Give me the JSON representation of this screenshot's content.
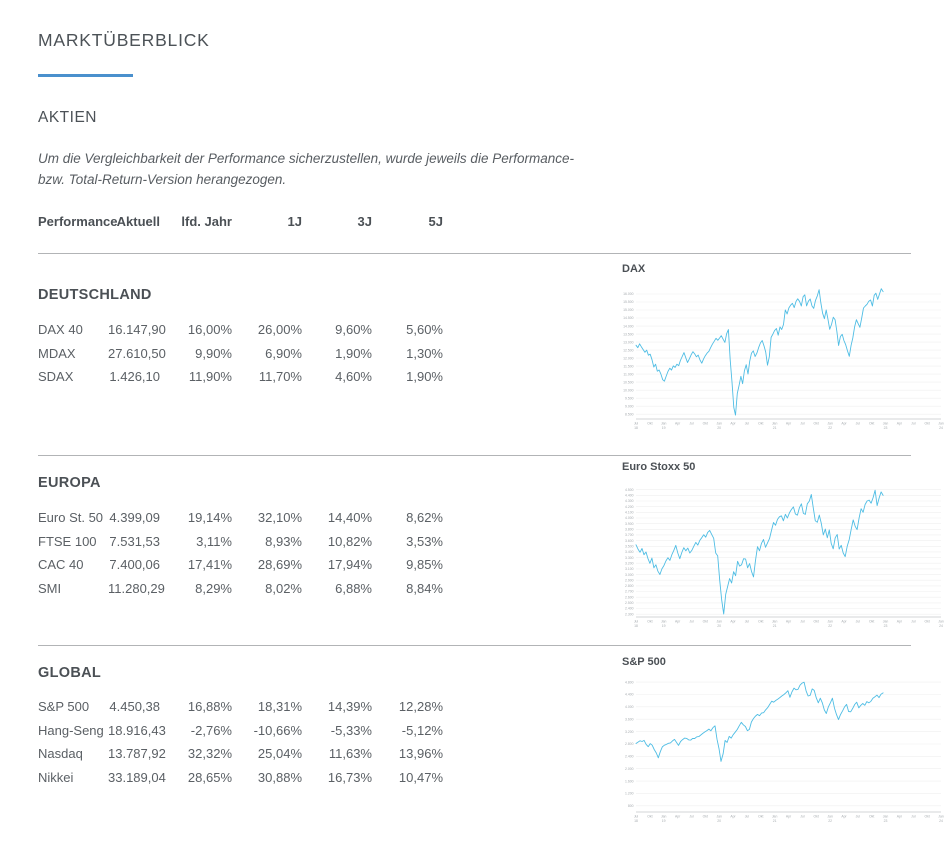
{
  "page": {
    "title": "MARKTÜBERBLICK",
    "accent_color": "#4a90cd"
  },
  "aktien": {
    "heading": "AKTIEN",
    "note_line1": "Um die Vergleichbarkeit der Performance sicherzustellen, wurde jeweils die Performance-",
    "note_line2": "bzw. Total-Return-Version herangezogen."
  },
  "table": {
    "headers": {
      "performance": "Performance",
      "aktuell": "Aktuell",
      "lfd": "lfd. Jahr",
      "j1": "1J",
      "j3": "3J",
      "j5": "5J"
    },
    "groups": [
      {
        "name": "DEUTSCHLAND",
        "rows": [
          {
            "label": "DAX 40",
            "aktuell": "16.147,90",
            "lfd": "16,00%",
            "j1": "26,00%",
            "j3": "9,60%",
            "j5": "5,60%"
          },
          {
            "label": "MDAX",
            "aktuell": "27.610,50",
            "lfd": "9,90%",
            "j1": "6,90%",
            "j3": "1,90%",
            "j5": "1,30%"
          },
          {
            "label": "SDAX",
            "aktuell": "1.426,10",
            "lfd": "11,90%",
            "j1": "11,70%",
            "j3": "4,60%",
            "j5": "1,90%"
          }
        ]
      },
      {
        "name": "EUROPA",
        "rows": [
          {
            "label": "Euro St. 50",
            "aktuell": "4.399,09",
            "lfd": "19,14%",
            "j1": "32,10%",
            "j3": "14,40%",
            "j5": "8,62%"
          },
          {
            "label": "FTSE 100",
            "aktuell": "7.531,53",
            "lfd": "3,11%",
            "j1": "8,93%",
            "j3": "10,82%",
            "j5": "3,53%"
          },
          {
            "label": "CAC 40",
            "aktuell": "7.400,06",
            "lfd": "17,41%",
            "j1": "28,69%",
            "j3": "17,94%",
            "j5": "9,85%"
          },
          {
            "label": "SMI",
            "aktuell": "11.280,29",
            "lfd": "8,29%",
            "j1": "8,02%",
            "j3": "6,88%",
            "j5": "8,84%"
          }
        ]
      },
      {
        "name": "GLOBAL",
        "rows": [
          {
            "label": "S&P 500",
            "aktuell": "4.450,38",
            "lfd": "16,88%",
            "j1": "18,31%",
            "j3": "14,39%",
            "j5": "12,28%"
          },
          {
            "label": "Hang-Seng",
            "aktuell": "18.916,43",
            "lfd": "-2,76%",
            "j1": "-10,66%",
            "j3": "-5,33%",
            "j5": "-5,12%"
          },
          {
            "label": "Nasdaq",
            "aktuell": "13.787,92",
            "lfd": "32,32%",
            "j1": "25,04%",
            "j3": "11,63%",
            "j5": "13,96%"
          },
          {
            "label": "Nikkei",
            "aktuell": "33.189,04",
            "lfd": "28,65%",
            "j1": "30,88%",
            "j3": "16,73%",
            "j5": "10,47%"
          }
        ]
      }
    ]
  },
  "chart_data": [
    {
      "type": "line",
      "title": "DAX",
      "line_color": "#4fbde4",
      "grid": true,
      "legend": "none",
      "ylim": [
        8200,
        16500
      ],
      "line_extent": 0.81,
      "ytick_values": [
        16000,
        15500,
        15000,
        14500,
        14000,
        13500,
        13000,
        12500,
        12000,
        11500,
        11000,
        10500,
        10000,
        9500,
        9000,
        8500
      ],
      "ytick_labels": [
        "16.000",
        "15.500",
        "15.000",
        "14.500",
        "14.000",
        "13.500",
        "13.000",
        "12.500",
        "12.000",
        "11.500",
        "11.000",
        "10.500",
        "10.000",
        "9.500",
        "9.000",
        "8.500"
      ],
      "xtick_labels": [
        "Jul 18",
        "Okt",
        "Jan 19",
        "Apr",
        "Jul",
        "Okt",
        "Jan 20",
        "Apr",
        "Jul",
        "Okt",
        "Jan 21",
        "Apr",
        "Jul",
        "Okt",
        "Jan 22",
        "Apr",
        "Jul",
        "Okt",
        "Jan 23",
        "Apr",
        "Jul",
        "Okt",
        "Jan 24"
      ],
      "values": [
        12805,
        12650,
        12890,
        12710,
        12540,
        12364,
        12500,
        12180,
        12247,
        11900,
        11447,
        11620,
        11180,
        11257,
        11000,
        10650,
        10559,
        10880,
        11173,
        11370,
        11250,
        11516,
        11420,
        11620,
        11526,
        11850,
        12100,
        12344,
        12020,
        11727,
        11950,
        12200,
        12399,
        12260,
        12080,
        12189,
        11880,
        11680,
        11939,
        12150,
        12310,
        12428,
        12650,
        12867,
        13050,
        13236,
        13110,
        13249,
        13400,
        13180,
        12982,
        13520,
        13780,
        11890,
        10500,
        8920,
        8442,
        9800,
        10300,
        10862,
        10400,
        11200,
        11587,
        11000,
        11800,
        12311,
        12450,
        12100,
        12313,
        12650,
        12945,
        13100,
        12761,
        12380,
        11556,
        12080,
        13291,
        13500,
        13719,
        13850,
        13432,
        13950,
        13786,
        14100,
        15008,
        14750,
        15136,
        15300,
        15421,
        15150,
        15531,
        15700,
        15544,
        15250,
        15835,
        15950,
        15261,
        15550,
        15689,
        15250,
        15100,
        15600,
        15885,
        16271,
        15471,
        14800,
        14461,
        15000,
        14415,
        13800,
        14098,
        14550,
        14388,
        13700,
        12784,
        13350,
        13484,
        13100,
        12835,
        12450,
        12114,
        12800,
        13254,
        13950,
        14397,
        14150,
        13924,
        14500,
        15128,
        15250,
        15365,
        15550,
        15629,
        15250,
        15922,
        16050,
        15664,
        16000,
        16332,
        16147
      ]
    },
    {
      "type": "line",
      "title": "Euro Stoxx 50",
      "line_color": "#4fbde4",
      "grid": true,
      "legend": "none",
      "ylim": [
        2250,
        4600
      ],
      "line_extent": 0.81,
      "ytick_values": [
        4500,
        4400,
        4300,
        4200,
        4100,
        4000,
        3900,
        3800,
        3700,
        3600,
        3500,
        3400,
        3300,
        3200,
        3100,
        3000,
        2900,
        2800,
        2700,
        2600,
        2500,
        2400,
        2300
      ],
      "ytick_labels": [
        "4.500",
        "4.400",
        "4.300",
        "4.200",
        "4.100",
        "4.000",
        "3.900",
        "3.800",
        "3.700",
        "3.600",
        "3.500",
        "3.400",
        "3.300",
        "3.200",
        "3.100",
        "3.000",
        "2.900",
        "2.800",
        "2.700",
        "2.600",
        "2.500",
        "2.400",
        "2.300"
      ],
      "xtick_labels": [
        "Jul 18",
        "Okt",
        "Jan 19",
        "Apr",
        "Jul",
        "Okt",
        "Jan 20",
        "Apr",
        "Jul",
        "Okt",
        "Jan 21",
        "Apr",
        "Jul",
        "Okt",
        "Jan 22",
        "Apr",
        "Jul",
        "Okt",
        "Jan 23",
        "Apr",
        "Jul",
        "Okt",
        "Jan 24"
      ],
      "values": [
        3525,
        3450,
        3393,
        3460,
        3350,
        3399,
        3280,
        3198,
        3290,
        3120,
        3173,
        3060,
        3001,
        3100,
        3159,
        3240,
        3298,
        3250,
        3352,
        3430,
        3515,
        3380,
        3280,
        3390,
        3474,
        3420,
        3467,
        3380,
        3427,
        3500,
        3569,
        3520,
        3604,
        3650,
        3704,
        3660,
        3745,
        3780,
        3710,
        3641,
        3380,
        3329,
        2900,
        2550,
        2303,
        2650,
        2787,
        2928,
        2850,
        3050,
        2980,
        3234,
        3150,
        3174,
        3280,
        3273,
        3120,
        3193,
        3050,
        2958,
        3250,
        3493,
        3420,
        3553,
        3620,
        3481,
        3560,
        3636,
        3780,
        3919,
        3870,
        3974,
        4020,
        4039,
        3950,
        4064,
        4000,
        4089,
        4150,
        4196,
        4070,
        4048,
        4180,
        4251,
        4080,
        4063,
        4250,
        4298,
        4415,
        4175,
        3950,
        3924,
        4050,
        3903,
        3700,
        3803,
        3650,
        3789,
        3550,
        3455,
        3650,
        3708,
        3450,
        3517,
        3380,
        3318,
        3500,
        3618,
        3800,
        3965,
        3850,
        3794,
        4000,
        4163,
        4100,
        4238,
        4300,
        4315,
        4260,
        4359,
        4491,
        4218,
        4350,
        4460,
        4399
      ]
    },
    {
      "type": "line",
      "title": "S&P 500",
      "line_color": "#4fbde4",
      "grid": true,
      "legend": "none",
      "ylim": [
        600,
        4900
      ],
      "line_extent": 0.81,
      "ytick_values": [
        4800,
        4400,
        4000,
        3600,
        3200,
        2800,
        2400,
        2000,
        1600,
        1200,
        800
      ],
      "ytick_labels": [
        "4.800",
        "4.400",
        "4.000",
        "3.600",
        "3.200",
        "2.800",
        "2.400",
        "2.000",
        "1.600",
        "1.200",
        "800"
      ],
      "xtick_labels": [
        "Jul 18",
        "Okt",
        "Jan 19",
        "Apr",
        "Jul",
        "Okt",
        "Jan 20",
        "Apr",
        "Jul",
        "Okt",
        "Jan 21",
        "Apr",
        "Jul",
        "Okt",
        "Jan 22",
        "Apr",
        "Jul",
        "Okt",
        "Jan 23",
        "Apr",
        "Jul",
        "Okt",
        "Jan 24"
      ],
      "values": [
        2816,
        2860,
        2902,
        2880,
        2914,
        2790,
        2712,
        2810,
        2760,
        2620,
        2507,
        2351,
        2550,
        2704,
        2760,
        2784,
        2820,
        2834,
        2900,
        2946,
        2850,
        2752,
        2880,
        2942,
        2990,
        2980,
        2930,
        2926,
        2980,
        2977,
        3030,
        3038,
        3090,
        3141,
        3190,
        3231,
        3280,
        3226,
        3330,
        3386,
        2954,
        2650,
        2237,
        2480,
        2912,
        2850,
        3044,
        2990,
        3100,
        3180,
        3271,
        3390,
        3500,
        3420,
        3363,
        3230,
        3270,
        3510,
        3622,
        3700,
        3756,
        3714,
        3800,
        3811,
        3900,
        3973,
        4080,
        4181,
        4150,
        4204,
        4250,
        4298,
        4350,
        4395,
        4450,
        4523,
        4308,
        4480,
        4605,
        4550,
        4567,
        4700,
        4766,
        4797,
        4516,
        4350,
        4374,
        4580,
        4530,
        4300,
        4132,
        4280,
        4132,
        3900,
        3785,
        4000,
        4130,
        4280,
        3955,
        3750,
        3586,
        3750,
        3872,
        4000,
        4080,
        3850,
        3840,
        3950,
        4077,
        4150,
        3970,
        4050,
        4109,
        4050,
        4169,
        4130,
        4180,
        4280,
        4328,
        4380,
        4299,
        4410,
        4450
      ]
    }
  ]
}
